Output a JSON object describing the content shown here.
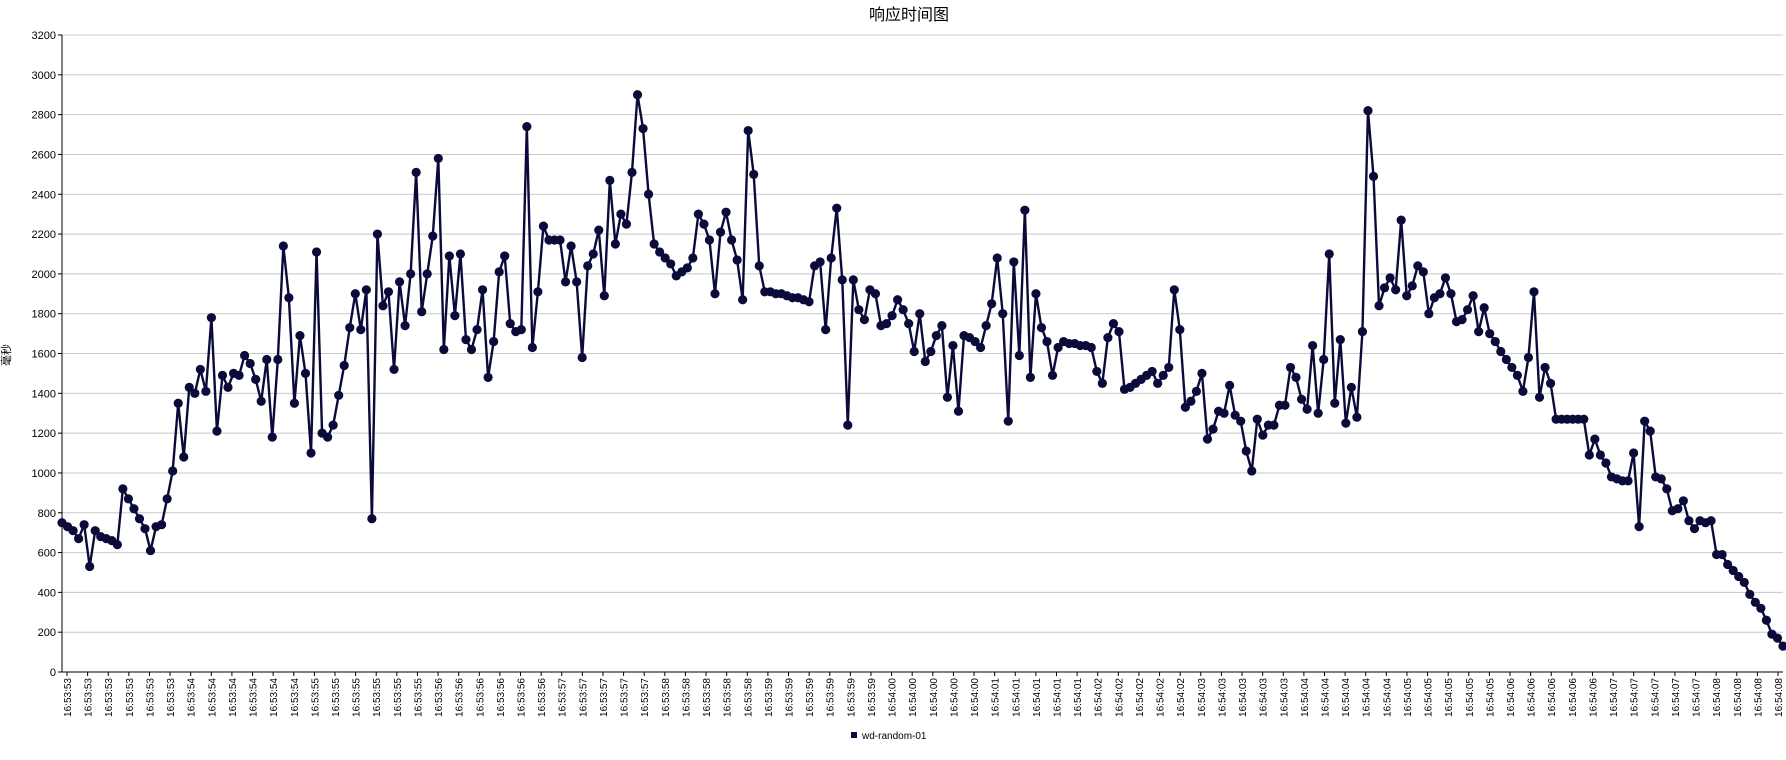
{
  "chart_data": {
    "type": "line",
    "title": "响应时间图",
    "ylabel": "毫秒",
    "xlabel": "",
    "ylim": [
      0,
      3200
    ],
    "ytick_step": 200,
    "grid": true,
    "legend_position": "bottom-center",
    "x_tick_labels": [
      "16:53:53",
      "16:53:53",
      "16:53:53",
      "16:53:53",
      "16:53:53",
      "16:53:53",
      "16:53:54",
      "16:53:54",
      "16:53:54",
      "16:53:54",
      "16:53:54",
      "16:53:54",
      "16:53:55",
      "16:53:55",
      "16:53:55",
      "16:53:55",
      "16:53:55",
      "16:53:55",
      "16:53:56",
      "16:53:56",
      "16:53:56",
      "16:53:56",
      "16:53:56",
      "16:53:56",
      "16:53:57",
      "16:53:57",
      "16:53:57",
      "16:53:57",
      "16:53:57",
      "16:53:58",
      "16:53:58",
      "16:53:58",
      "16:53:58",
      "16:53:58",
      "16:53:59",
      "16:53:59",
      "16:53:59",
      "16:53:59",
      "16:53:59",
      "16:53:59",
      "16:54:00",
      "16:54:00",
      "16:54:00",
      "16:54:00",
      "16:54:00",
      "16:54:01",
      "16:54:01",
      "16:54:01",
      "16:54:01",
      "16:54:01",
      "16:54:02",
      "16:54:02",
      "16:54:02",
      "16:54:02",
      "16:54:02",
      "16:54:03",
      "16:54:03",
      "16:54:03",
      "16:54:03",
      "16:54:03",
      "16:54:04",
      "16:54:04",
      "16:54:04",
      "16:54:04",
      "16:54:04",
      "16:54:05",
      "16:54:05",
      "16:54:05",
      "16:54:05",
      "16:54:05",
      "16:54:06",
      "16:54:06",
      "16:54:06",
      "16:54:06",
      "16:54:06",
      "16:54:07",
      "16:54:07",
      "16:54:07",
      "16:54:07",
      "16:54:07",
      "16:54:08",
      "16:54:08",
      "16:54:08",
      "16:54:08"
    ],
    "series": [
      {
        "name": "wd-random-01",
        "color": "#0b0b3b",
        "values": [
          750,
          730,
          710,
          670,
          740,
          530,
          710,
          680,
          670,
          660,
          640,
          920,
          870,
          820,
          770,
          720,
          610,
          730,
          740,
          870,
          1010,
          1350,
          1080,
          1430,
          1400,
          1520,
          1410,
          1780,
          1210,
          1490,
          1430,
          1500,
          1490,
          1590,
          1550,
          1470,
          1360,
          1570,
          1180,
          1570,
          2140,
          1880,
          1350,
          1690,
          1500,
          1100,
          2110,
          1200,
          1180,
          1240,
          1390,
          1540,
          1730,
          1900,
          1720,
          1920,
          770,
          2200,
          1840,
          1910,
          1520,
          1960,
          1740,
          2000,
          2510,
          1810,
          2000,
          2190,
          2580,
          1620,
          2090,
          1790,
          2100,
          1670,
          1620,
          1720,
          1920,
          1480,
          1660,
          2010,
          2090,
          1750,
          1710,
          1720,
          2740,
          1630,
          1910,
          2240,
          2170,
          2170,
          2170,
          1960,
          2140,
          1960,
          1580,
          2040,
          2100,
          2220,
          1890,
          2470,
          2150,
          2300,
          2250,
          2510,
          2900,
          2730,
          2400,
          2150,
          2110,
          2080,
          2050,
          1990,
          2010,
          2030,
          2080,
          2300,
          2250,
          2170,
          1900,
          2210,
          2310,
          2170,
          2070,
          1870,
          2720,
          2500,
          2040,
          1910,
          1910,
          1900,
          1900,
          1890,
          1880,
          1880,
          1870,
          1860,
          2040,
          2060,
          1720,
          2080,
          2330,
          1970,
          1240,
          1970,
          1820,
          1770,
          1920,
          1900,
          1740,
          1750,
          1790,
          1870,
          1820,
          1750,
          1610,
          1800,
          1560,
          1610,
          1690,
          1740,
          1380,
          1640,
          1310,
          1690,
          1680,
          1660,
          1630,
          1740,
          1850,
          2080,
          1800,
          1260,
          2060,
          1590,
          2320,
          1480,
          1900,
          1730,
          1660,
          1490,
          1630,
          1660,
          1650,
          1650,
          1640,
          1640,
          1630,
          1510,
          1450,
          1680,
          1750,
          1710,
          1420,
          1430,
          1450,
          1470,
          1490,
          1510,
          1450,
          1490,
          1530,
          1920,
          1720,
          1330,
          1360,
          1410,
          1500,
          1170,
          1220,
          1310,
          1300,
          1440,
          1290,
          1260,
          1110,
          1010,
          1270,
          1190,
          1240,
          1240,
          1340,
          1340,
          1530,
          1480,
          1370,
          1320,
          1640,
          1300,
          1570,
          2100,
          1350,
          1670,
          1250,
          1430,
          1280,
          1710,
          2820,
          2490,
          1840,
          1930,
          1980,
          1920,
          2270,
          1890,
          1940,
          2040,
          2010,
          1800,
          1880,
          1900,
          1980,
          1900,
          1760,
          1770,
          1820,
          1890,
          1710,
          1830,
          1700,
          1660,
          1610,
          1570,
          1530,
          1490,
          1410,
          1580,
          1910,
          1380,
          1530,
          1450,
          1270,
          1270,
          1270,
          1270,
          1270,
          1270,
          1090,
          1170,
          1090,
          1050,
          980,
          970,
          960,
          960,
          1100,
          730,
          1260,
          1210,
          980,
          970,
          920,
          810,
          820,
          860,
          760,
          720,
          760,
          750,
          760,
          590,
          590,
          540,
          510,
          480,
          450,
          390,
          350,
          320,
          260,
          190,
          170,
          130
        ]
      }
    ]
  }
}
